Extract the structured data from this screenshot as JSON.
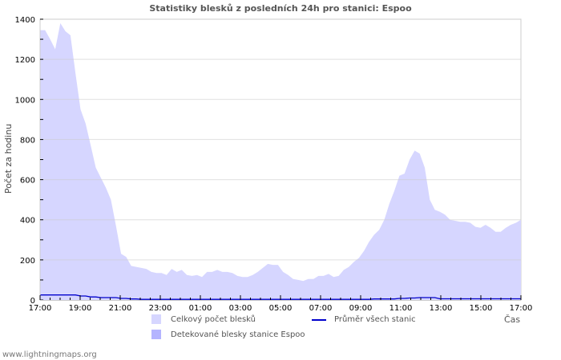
{
  "title": "Statistiky blesků z posledních 24h pro stanici: Espoo",
  "footer": "www.lightningmaps.org",
  "chart_data": {
    "type": "area",
    "title": "Statistiky blesků z posledních 24h pro stanici: Espoo",
    "xlabel": "Čas",
    "ylabel": "Počet za hodinu",
    "ylim": [
      0,
      1400
    ],
    "yticks": [
      0,
      200,
      400,
      600,
      800,
      1000,
      1200,
      1400
    ],
    "xtick_labels": [
      "17:00",
      "19:00",
      "21:00",
      "23:00",
      "01:00",
      "03:00",
      "05:00",
      "07:00",
      "09:00",
      "11:00",
      "13:00",
      "15:00",
      "17:00"
    ],
    "grid": true,
    "legend_position": "bottom",
    "colors": {
      "total": "#d6d6ff",
      "station": "#b4b4ff",
      "average": "#0000cc",
      "grid": "#cccccc",
      "border": "#cccccc"
    },
    "x_step_minutes": 15,
    "x_start": "17:00",
    "series": [
      {
        "name": "Celkový počet blesků",
        "type": "area",
        "values": [
          1345,
          1345,
          1300,
          1250,
          1380,
          1340,
          1320,
          1130,
          950,
          880,
          770,
          660,
          610,
          560,
          500,
          370,
          230,
          215,
          170,
          165,
          160,
          155,
          140,
          135,
          135,
          125,
          155,
          140,
          150,
          125,
          120,
          125,
          115,
          140,
          140,
          150,
          140,
          140,
          135,
          120,
          115,
          115,
          125,
          140,
          160,
          180,
          175,
          175,
          140,
          125,
          105,
          100,
          95,
          105,
          105,
          120,
          120,
          130,
          115,
          120,
          150,
          165,
          190,
          210,
          245,
          290,
          325,
          350,
          400,
          480,
          545,
          620,
          630,
          700,
          745,
          730,
          660,
          500,
          450,
          440,
          425,
          400,
          395,
          390,
          390,
          385,
          365,
          360,
          375,
          360,
          340,
          340,
          360,
          375,
          385,
          400
        ]
      },
      {
        "name": "Detekované blesky stanice Espoo",
        "type": "area",
        "values": [
          0,
          0,
          0,
          0,
          0,
          0,
          0,
          0,
          0,
          0,
          0,
          0,
          0,
          0,
          0,
          0,
          0,
          0,
          0,
          0,
          0,
          0,
          0,
          0,
          0,
          0,
          0,
          0,
          0,
          0,
          0,
          0,
          0,
          0,
          0,
          0,
          0,
          0,
          0,
          0,
          0,
          0,
          0,
          0,
          0,
          0,
          0,
          0,
          0,
          0,
          0,
          0,
          0,
          0,
          0,
          0,
          0,
          0,
          0,
          0,
          0,
          0,
          0,
          0,
          0,
          0,
          0,
          0,
          0,
          0,
          0,
          0,
          0,
          0,
          0,
          0,
          0,
          0,
          0,
          0,
          0,
          0,
          0,
          0,
          0,
          0,
          0,
          0,
          0,
          0,
          0,
          0,
          0,
          0,
          0,
          0
        ]
      },
      {
        "name": "Průměr všech stanic",
        "type": "line",
        "values": [
          25,
          25,
          25,
          25,
          25,
          25,
          25,
          25,
          20,
          20,
          15,
          15,
          12,
          12,
          12,
          12,
          8,
          8,
          5,
          5,
          3,
          3,
          3,
          3,
          3,
          3,
          3,
          3,
          3,
          3,
          3,
          3,
          3,
          3,
          3,
          3,
          3,
          3,
          3,
          3,
          3,
          3,
          3,
          3,
          3,
          3,
          3,
          3,
          3,
          3,
          3,
          3,
          3,
          3,
          3,
          3,
          3,
          3,
          3,
          3,
          3,
          3,
          3,
          3,
          3,
          3,
          5,
          5,
          5,
          5,
          5,
          8,
          8,
          10,
          10,
          12,
          12,
          12,
          12,
          6,
          6,
          6,
          6,
          6,
          6,
          6,
          6,
          6,
          6,
          6,
          6,
          6,
          6,
          6,
          6,
          6
        ]
      }
    ]
  },
  "legend": {
    "items": [
      {
        "label": "Celkový počet blesků",
        "kind": "swatch",
        "color": "#d6d6ff"
      },
      {
        "label": "Detekované blesky stanice Espoo",
        "kind": "swatch",
        "color": "#b4b4ff"
      },
      {
        "label": "Průměr všech stanic",
        "kind": "line",
        "color": "#0000cc"
      }
    ]
  }
}
